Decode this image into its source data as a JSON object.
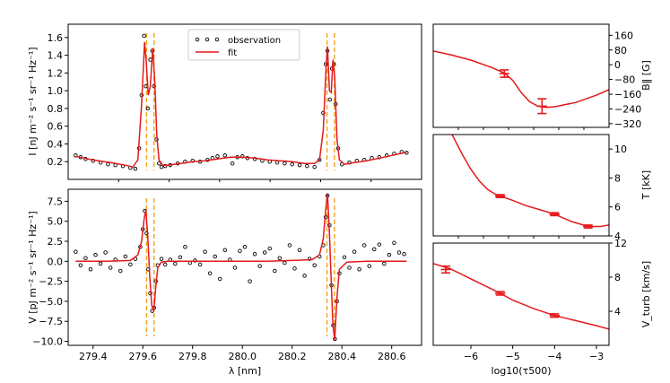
{
  "chart_data": [
    {
      "id": "intensity",
      "type": "scatter",
      "xlabel": "",
      "ylabel": "I [nJ m⁻² s⁻¹ sr⁻¹ Hz⁻¹]",
      "xlim": [
        279.3,
        280.72
      ],
      "ylim": [
        0.0,
        1.75
      ],
      "yticks": [
        "0.2",
        "0.4",
        "0.6",
        "0.8",
        "1.0",
        "1.2",
        "1.4",
        "1.6"
      ],
      "xticks": [],
      "legend": {
        "position": "top-center",
        "entries": [
          "observation",
          "fit"
        ]
      },
      "vlines": [
        279.615,
        279.645,
        280.34,
        280.37
      ],
      "series": [
        {
          "name": "observation",
          "style": "open-circles",
          "color": "#000000",
          "x": [
            279.33,
            279.35,
            279.37,
            279.4,
            279.43,
            279.46,
            279.49,
            279.52,
            279.55,
            279.57,
            279.585,
            279.595,
            279.605,
            279.612,
            279.62,
            279.63,
            279.638,
            279.645,
            279.655,
            279.665,
            279.675,
            279.69,
            279.71,
            279.74,
            279.77,
            279.8,
            279.83,
            279.86,
            279.88,
            279.9,
            279.93,
            279.96,
            279.98,
            280.0,
            280.02,
            280.05,
            280.08,
            280.11,
            280.14,
            280.17,
            280.2,
            280.23,
            280.26,
            280.29,
            280.31,
            280.325,
            280.335,
            280.342,
            280.352,
            280.36,
            280.368,
            280.375,
            280.385,
            280.4,
            280.43,
            280.46,
            280.49,
            280.52,
            280.55,
            280.58,
            280.61,
            280.64,
            280.66
          ],
          "y": [
            0.27,
            0.25,
            0.23,
            0.21,
            0.19,
            0.17,
            0.16,
            0.15,
            0.13,
            0.12,
            0.35,
            0.95,
            1.62,
            1.05,
            0.8,
            1.35,
            1.45,
            1.05,
            0.45,
            0.18,
            0.14,
            0.15,
            0.16,
            0.18,
            0.2,
            0.21,
            0.2,
            0.22,
            0.24,
            0.26,
            0.27,
            0.18,
            0.25,
            0.26,
            0.24,
            0.23,
            0.21,
            0.2,
            0.19,
            0.18,
            0.17,
            0.16,
            0.15,
            0.14,
            0.22,
            0.75,
            1.3,
            1.45,
            0.9,
            1.25,
            1.3,
            0.85,
            0.35,
            0.17,
            0.19,
            0.21,
            0.22,
            0.24,
            0.25,
            0.27,
            0.29,
            0.31,
            0.3
          ]
        },
        {
          "name": "fit",
          "style": "line",
          "color": "#e41a1c",
          "x": [
            279.33,
            279.4,
            279.47,
            279.53,
            279.56,
            279.58,
            279.595,
            279.607,
            279.614,
            279.622,
            279.63,
            279.64,
            279.648,
            279.656,
            279.665,
            279.68,
            279.7,
            279.75,
            279.8,
            279.85,
            279.9,
            279.95,
            280.0,
            280.05,
            280.1,
            280.15,
            280.2,
            280.25,
            280.29,
            280.31,
            280.325,
            280.335,
            280.342,
            280.35,
            280.357,
            280.364,
            280.371,
            280.38,
            280.39,
            280.41,
            280.45,
            280.5,
            280.55,
            280.6,
            280.65,
            280.66
          ],
          "y": [
            0.26,
            0.22,
            0.19,
            0.16,
            0.14,
            0.22,
            0.85,
            1.55,
            1.32,
            0.95,
            1.05,
            1.48,
            1.1,
            0.5,
            0.22,
            0.16,
            0.16,
            0.18,
            0.2,
            0.21,
            0.23,
            0.25,
            0.25,
            0.24,
            0.22,
            0.21,
            0.2,
            0.18,
            0.18,
            0.22,
            0.55,
            1.2,
            1.5,
            1.0,
            0.98,
            1.35,
            1.15,
            0.45,
            0.22,
            0.17,
            0.19,
            0.21,
            0.24,
            0.27,
            0.3,
            0.3
          ]
        }
      ]
    },
    {
      "id": "stokes-v",
      "type": "scatter",
      "xlabel": "λ [nm]",
      "ylabel": "V [pJ m⁻² s⁻¹ sr⁻¹ Hz⁻¹]",
      "xlim": [
        279.3,
        280.72
      ],
      "ylim": [
        -10.5,
        9.0
      ],
      "yticks": [
        "−10.0",
        "−7.5",
        "−5.0",
        "−2.5",
        "0.0",
        "2.5",
        "5.0",
        "7.5"
      ],
      "xticks": [
        "279.4",
        "279.6",
        "279.8",
        "280.0",
        "280.2",
        "280.4",
        "280.6"
      ],
      "vlines": [
        279.615,
        279.645,
        280.34,
        280.37
      ],
      "series": [
        {
          "name": "observation",
          "style": "open-circles",
          "color": "#000000",
          "x": [
            279.33,
            279.35,
            279.37,
            279.39,
            279.41,
            279.43,
            279.45,
            279.47,
            279.49,
            279.51,
            279.53,
            279.55,
            279.57,
            279.59,
            279.6,
            279.608,
            279.615,
            279.622,
            279.63,
            279.638,
            279.645,
            279.652,
            279.66,
            279.675,
            279.69,
            279.71,
            279.73,
            279.75,
            279.77,
            279.79,
            279.81,
            279.83,
            279.85,
            279.87,
            279.89,
            279.91,
            279.93,
            279.95,
            279.97,
            279.99,
            280.01,
            280.03,
            280.05,
            280.07,
            280.09,
            280.11,
            280.13,
            280.15,
            280.17,
            280.19,
            280.21,
            280.23,
            280.25,
            280.27,
            280.29,
            280.31,
            280.325,
            280.335,
            280.342,
            280.35,
            280.358,
            280.365,
            280.372,
            280.38,
            280.39,
            280.41,
            280.43,
            280.45,
            280.47,
            280.49,
            280.51,
            280.53,
            280.55,
            280.57,
            280.59,
            280.61,
            280.63,
            280.65
          ],
          "y": [
            1.2,
            -0.5,
            0.4,
            -1.0,
            0.8,
            -0.3,
            1.1,
            -0.8,
            0.2,
            -1.2,
            0.6,
            -0.4,
            0.3,
            1.8,
            4.0,
            6.3,
            3.5,
            -1.0,
            -4.0,
            -6.2,
            -5.8,
            -2.5,
            -0.5,
            0.3,
            -0.4,
            0.2,
            -0.3,
            0.5,
            1.8,
            -0.2,
            0.1,
            -0.4,
            1.2,
            -1.5,
            0.6,
            -2.2,
            1.4,
            0.2,
            -0.8,
            1.3,
            1.8,
            -2.5,
            0.9,
            -0.6,
            1.1,
            1.6,
            -1.2,
            0.4,
            -0.2,
            2.0,
            -0.9,
            1.4,
            -1.8,
            0.3,
            -0.5,
            0.6,
            2.0,
            5.5,
            8.2,
            4.5,
            -3.0,
            -8.0,
            -9.7,
            -5.0,
            -1.5,
            0.5,
            -0.8,
            1.2,
            -1.0,
            2.0,
            -0.6,
            1.5,
            2.1,
            -0.3,
            0.8,
            2.3,
            1.1,
            0.9
          ]
        },
        {
          "name": "fit",
          "style": "line",
          "color": "#e41a1c",
          "x": [
            279.33,
            279.45,
            279.55,
            279.58,
            279.595,
            279.605,
            279.612,
            279.62,
            279.628,
            279.636,
            279.644,
            279.652,
            279.66,
            279.675,
            279.7,
            279.8,
            279.9,
            280.0,
            280.1,
            280.2,
            280.28,
            280.31,
            280.325,
            280.335,
            280.342,
            280.35,
            280.357,
            280.364,
            280.371,
            280.38,
            280.39,
            280.42,
            280.5,
            280.6,
            280.66
          ],
          "y": [
            0.0,
            0.0,
            0.1,
            0.8,
            2.5,
            5.2,
            6.4,
            3.0,
            -2.0,
            -5.5,
            -6.3,
            -3.2,
            -0.8,
            -0.1,
            0.0,
            0.0,
            0.0,
            0.0,
            0.0,
            0.1,
            0.2,
            0.8,
            2.8,
            6.5,
            8.5,
            3.5,
            -2.5,
            -8.0,
            -9.8,
            -4.5,
            -1.0,
            -0.1,
            0.0,
            0.0,
            0.0
          ]
        }
      ]
    },
    {
      "id": "b-long",
      "type": "line",
      "ylabel": "B‖ [G]",
      "xlim": [
        -6.9,
        -2.7
      ],
      "ylim": [
        -340,
        220
      ],
      "yticks": [
        "−320",
        "−240",
        "−160",
        "−80",
        "0",
        "80",
        "160"
      ],
      "xticks": [],
      "series": [
        {
          "name": "B_long",
          "color": "#e41a1c",
          "x": [
            -6.9,
            -6.5,
            -6.0,
            -5.5,
            -5.2,
            -5.0,
            -4.8,
            -4.6,
            -4.4,
            -4.2,
            -4.0,
            -3.5,
            -3.0,
            -2.7
          ],
          "y": [
            75,
            55,
            25,
            -15,
            -45,
            -85,
            -150,
            -200,
            -225,
            -232,
            -228,
            -205,
            -165,
            -135
          ]
        },
        {
          "name": "errorbars",
          "color": "#e41a1c",
          "errorbars": true,
          "x": [
            -5.2,
            -4.3
          ],
          "y": [
            -48,
            -225
          ],
          "yerr": [
            20,
            40
          ],
          "xerr": [
            0.12,
            0.12
          ]
        }
      ]
    },
    {
      "id": "temperature",
      "type": "line",
      "ylabel": "T [kK]",
      "xlim": [
        -6.9,
        -2.7
      ],
      "ylim": [
        4.0,
        11.0
      ],
      "yticks": [
        "4",
        "6",
        "8",
        "10"
      ],
      "xticks": [],
      "series": [
        {
          "name": "T",
          "color": "#e41a1c",
          "x": [
            -6.45,
            -6.2,
            -6.0,
            -5.8,
            -5.6,
            -5.4,
            -5.3,
            -5.0,
            -4.7,
            -4.4,
            -4.0,
            -3.6,
            -3.2,
            -2.9,
            -2.7
          ],
          "y": [
            11.0,
            9.6,
            8.6,
            7.8,
            7.2,
            6.85,
            6.75,
            6.45,
            6.1,
            5.85,
            5.5,
            5.0,
            4.65,
            4.65,
            4.75
          ]
        },
        {
          "name": "errorbars",
          "color": "#e41a1c",
          "errorbars": true,
          "x": [
            -5.3,
            -4.0,
            -3.2
          ],
          "y": [
            6.75,
            5.5,
            4.65
          ],
          "yerr": [
            0.1,
            0.1,
            0.1
          ],
          "xerr": [
            0.12,
            0.12,
            0.12
          ]
        }
      ]
    },
    {
      "id": "v-turb",
      "type": "line",
      "xlabel": "log10(τ500)",
      "ylabel": "V_turb [km/s]",
      "xlim": [
        -6.9,
        -2.7
      ],
      "ylim": [
        0.0,
        12.0
      ],
      "yticks": [
        "4",
        "8",
        "12"
      ],
      "xticks": [
        "−6",
        "−5",
        "−4",
        "−3"
      ],
      "series": [
        {
          "name": "Vturb",
          "color": "#e41a1c",
          "x": [
            -6.9,
            -6.5,
            -6.0,
            -5.5,
            -5.3,
            -5.0,
            -4.5,
            -4.0,
            -3.5,
            -3.0,
            -2.7
          ],
          "y": [
            9.6,
            9.0,
            7.8,
            6.6,
            6.1,
            5.3,
            4.3,
            3.5,
            2.9,
            2.3,
            1.9
          ]
        },
        {
          "name": "errorbars",
          "color": "#e41a1c",
          "errorbars": true,
          "x": [
            -6.6,
            -5.3,
            -4.0
          ],
          "y": [
            8.9,
            6.1,
            3.5
          ],
          "yerr": [
            0.4,
            0.2,
            0.2
          ],
          "xerr": [
            0.12,
            0.12,
            0.12
          ]
        }
      ]
    }
  ]
}
